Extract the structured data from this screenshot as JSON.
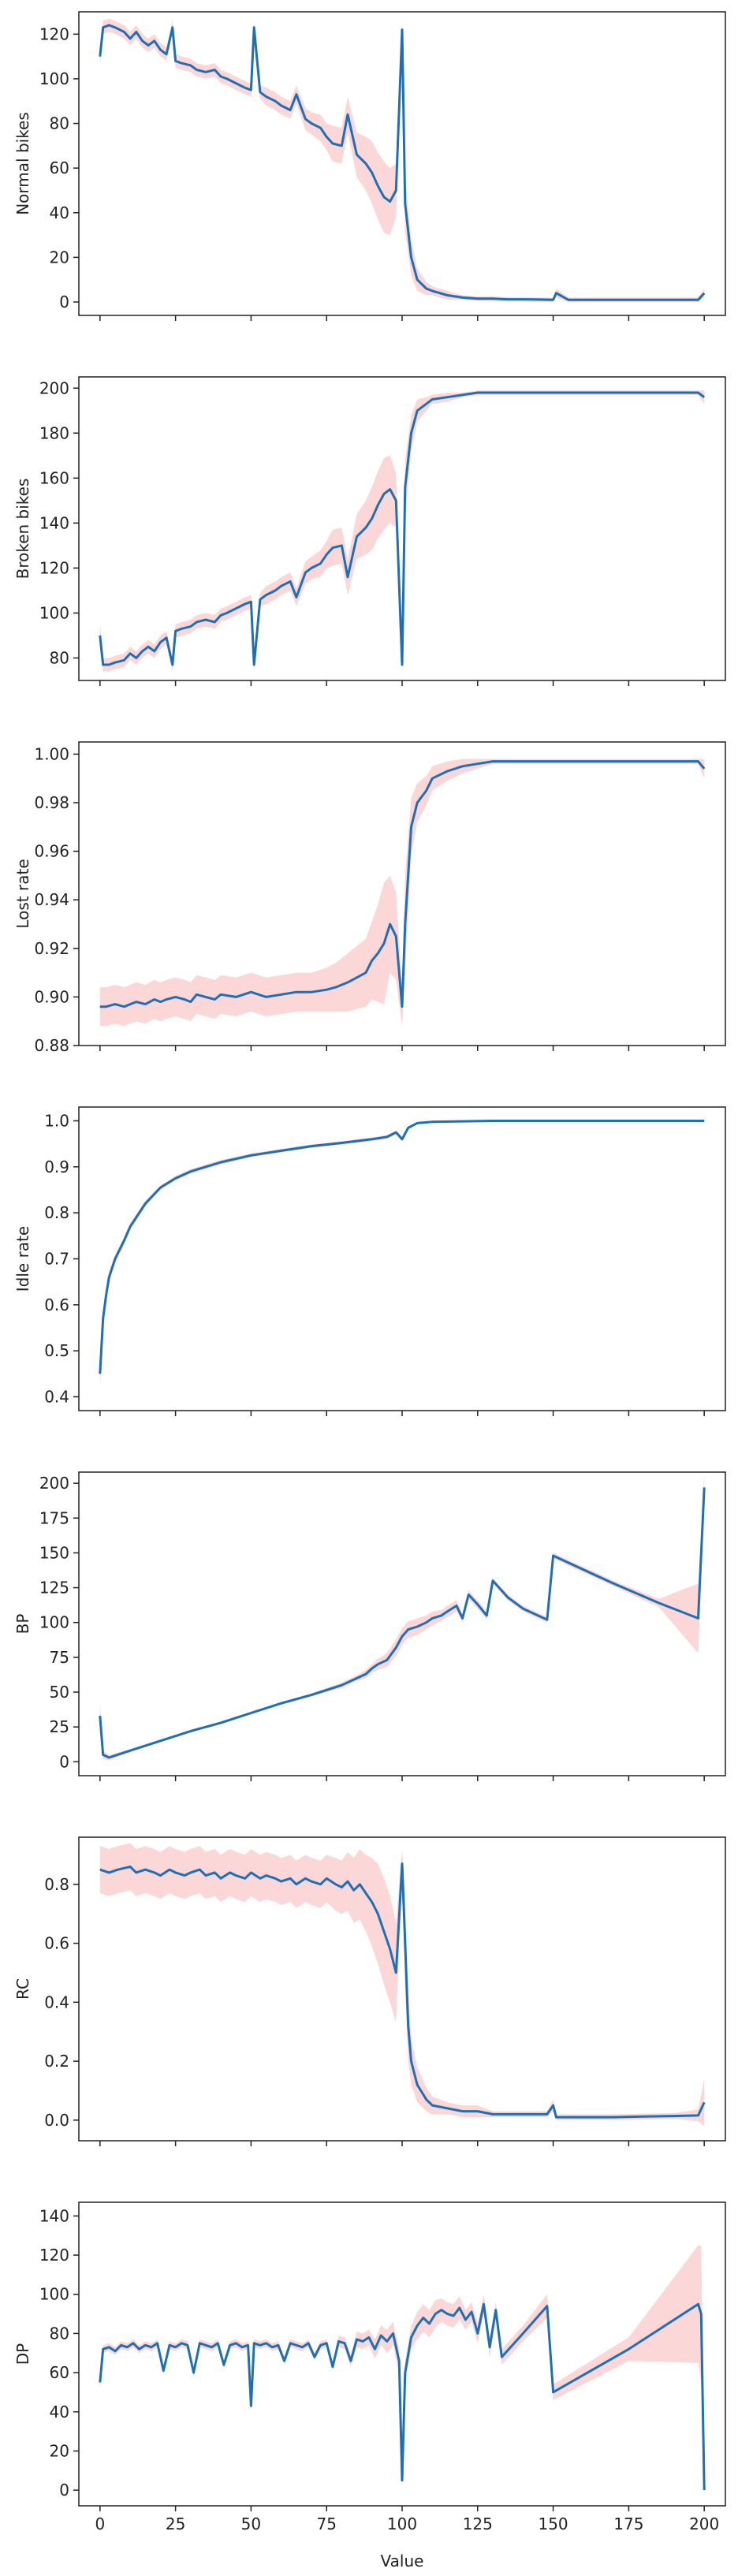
{
  "colors": {
    "line": "#1f6fb4",
    "band": "#f9c9c9",
    "frame": "#222222",
    "background": "#ffffff"
  },
  "shared_x": {
    "label": "Value",
    "ticks": [
      0,
      25,
      50,
      75,
      100,
      125,
      150,
      175,
      200
    ],
    "xlim": [
      -7,
      207
    ]
  },
  "chart_data": [
    {
      "type": "line",
      "ylabel": "Normal bikes",
      "ylim": [
        -6,
        130
      ],
      "yticks": [
        0,
        20,
        40,
        60,
        80,
        100,
        120
      ],
      "yticklabels": [
        "0",
        "20",
        "40",
        "60",
        "80",
        "100",
        "120"
      ],
      "x": [
        0,
        1,
        3,
        5,
        8,
        10,
        12,
        14,
        16,
        18,
        20,
        22,
        24,
        25,
        27,
        30,
        32,
        35,
        38,
        40,
        42,
        45,
        48,
        50,
        51,
        53,
        55,
        58,
        60,
        63,
        65,
        68,
        70,
        73,
        75,
        77,
        80,
        82,
        85,
        88,
        90,
        92,
        94,
        96,
        98,
        100,
        101,
        103,
        105,
        108,
        110,
        115,
        120,
        125,
        130,
        135,
        140,
        145,
        150,
        151,
        155,
        160,
        170,
        180,
        190,
        198,
        200
      ],
      "y": [
        110,
        123,
        124,
        123,
        121,
        118,
        121,
        117,
        115,
        117,
        113,
        111,
        123,
        108,
        107,
        106,
        104,
        103,
        104,
        101,
        100,
        98,
        96,
        95,
        123,
        94,
        92,
        90,
        88,
        86,
        93,
        82,
        80,
        78,
        74,
        71,
        70,
        84,
        66,
        62,
        58,
        52,
        47,
        45,
        50,
        122,
        44,
        20,
        10,
        6,
        5,
        3,
        2,
        1.5,
        1.5,
        1.2,
        1.2,
        1.1,
        1.0,
        4.0,
        1.0,
        1.0,
        1.0,
        1.0,
        1.0,
        1.0,
        4.0
      ],
      "band": [
        4,
        3,
        3,
        3,
        3,
        3,
        3,
        3,
        3,
        3,
        3,
        3,
        3,
        3,
        3,
        3,
        3,
        3,
        3,
        3,
        3,
        3,
        3,
        3,
        3,
        3,
        4,
        4,
        4,
        4,
        4,
        5,
        5,
        6,
        6,
        8,
        8,
        8,
        10,
        12,
        14,
        15,
        16,
        15,
        12,
        4,
        12,
        8,
        5,
        3,
        2,
        2,
        1,
        1,
        1,
        1,
        1,
        1,
        1,
        2,
        1,
        1,
        1,
        1,
        1,
        1,
        2
      ]
    },
    {
      "type": "line",
      "ylabel": "Broken bikes",
      "ylim": [
        70,
        205
      ],
      "yticks": [
        80,
        100,
        120,
        140,
        160,
        180,
        200
      ],
      "yticklabels": [
        "80",
        "100",
        "120",
        "140",
        "160",
        "180",
        "200"
      ],
      "x": [
        0,
        1,
        3,
        5,
        8,
        10,
        12,
        14,
        16,
        18,
        20,
        22,
        24,
        25,
        27,
        30,
        32,
        35,
        38,
        40,
        42,
        45,
        48,
        50,
        51,
        53,
        55,
        58,
        60,
        63,
        65,
        68,
        70,
        73,
        75,
        77,
        80,
        82,
        85,
        88,
        90,
        92,
        94,
        96,
        98,
        100,
        101,
        103,
        105,
        108,
        110,
        115,
        120,
        125,
        130,
        140,
        150,
        160,
        170,
        180,
        190,
        198,
        200
      ],
      "y": [
        90,
        77,
        77,
        78,
        79,
        82,
        80,
        83,
        85,
        83,
        87,
        89,
        77,
        92,
        93,
        94,
        96,
        97,
        96,
        99,
        100,
        102,
        104,
        105,
        77,
        106,
        108,
        110,
        112,
        114,
        107,
        118,
        120,
        122,
        126,
        129,
        130,
        116,
        134,
        138,
        142,
        148,
        153,
        155,
        150,
        77,
        156,
        180,
        190,
        193,
        195,
        196,
        197,
        198,
        198,
        198,
        198,
        198,
        198,
        198,
        198,
        198,
        196
      ],
      "band": [
        6,
        3,
        3,
        3,
        3,
        3,
        3,
        3,
        3,
        3,
        3,
        3,
        3,
        3,
        3,
        3,
        3,
        3,
        3,
        3,
        3,
        3,
        3,
        3,
        3,
        3,
        4,
        4,
        4,
        4,
        4,
        5,
        5,
        6,
        6,
        8,
        8,
        8,
        10,
        12,
        14,
        15,
        16,
        15,
        12,
        4,
        12,
        8,
        5,
        3,
        2,
        2,
        1,
        1,
        1,
        1,
        1,
        1,
        1,
        1,
        1,
        1,
        3
      ]
    },
    {
      "type": "line",
      "ylabel": "Lost rate",
      "ylim": [
        0.88,
        1.005
      ],
      "yticks": [
        0.88,
        0.9,
        0.92,
        0.94,
        0.96,
        0.98,
        1.0
      ],
      "yticklabels": [
        "0.88",
        "0.90",
        "0.92",
        "0.94",
        "0.96",
        "0.98",
        "1.00"
      ],
      "x": [
        0,
        2,
        5,
        8,
        10,
        12,
        15,
        18,
        20,
        22,
        25,
        28,
        30,
        32,
        35,
        38,
        40,
        45,
        50,
        55,
        60,
        65,
        70,
        75,
        78,
        80,
        82,
        85,
        88,
        90,
        92,
        94,
        96,
        98,
        100,
        101,
        103,
        105,
        108,
        110,
        115,
        120,
        125,
        130,
        140,
        150,
        160,
        170,
        180,
        190,
        198,
        200
      ],
      "y": [
        0.896,
        0.896,
        0.897,
        0.896,
        0.897,
        0.898,
        0.897,
        0.899,
        0.898,
        0.899,
        0.9,
        0.899,
        0.898,
        0.901,
        0.9,
        0.899,
        0.901,
        0.9,
        0.902,
        0.9,
        0.901,
        0.902,
        0.902,
        0.903,
        0.904,
        0.905,
        0.906,
        0.908,
        0.91,
        0.915,
        0.918,
        0.922,
        0.93,
        0.925,
        0.896,
        0.93,
        0.97,
        0.98,
        0.985,
        0.99,
        0.993,
        0.995,
        0.996,
        0.997,
        0.997,
        0.997,
        0.997,
        0.997,
        0.997,
        0.997,
        0.997,
        0.994
      ],
      "band": [
        0.008,
        0.008,
        0.008,
        0.008,
        0.008,
        0.008,
        0.008,
        0.008,
        0.008,
        0.008,
        0.008,
        0.008,
        0.008,
        0.008,
        0.008,
        0.008,
        0.008,
        0.008,
        0.008,
        0.008,
        0.008,
        0.008,
        0.008,
        0.009,
        0.01,
        0.011,
        0.012,
        0.013,
        0.014,
        0.016,
        0.02,
        0.025,
        0.02,
        0.018,
        0.008,
        0.02,
        0.012,
        0.008,
        0.006,
        0.005,
        0.004,
        0.003,
        0.002,
        0.001,
        0.001,
        0.001,
        0.001,
        0.001,
        0.001,
        0.001,
        0.001,
        0.004
      ]
    },
    {
      "type": "line",
      "ylabel": "Idle rate",
      "ylim": [
        0.37,
        1.03
      ],
      "yticks": [
        0.4,
        0.5,
        0.6,
        0.7,
        0.8,
        0.9,
        1.0
      ],
      "yticklabels": [
        "0.4",
        "0.5",
        "0.6",
        "0.7",
        "0.8",
        "0.9",
        "1.0"
      ],
      "x": [
        0,
        1,
        2,
        3,
        5,
        8,
        10,
        15,
        20,
        25,
        30,
        35,
        40,
        50,
        60,
        70,
        80,
        90,
        95,
        98,
        100,
        102,
        105,
        110,
        120,
        130,
        150,
        170,
        190,
        200
      ],
      "y": [
        0.45,
        0.57,
        0.62,
        0.66,
        0.7,
        0.74,
        0.77,
        0.82,
        0.855,
        0.875,
        0.89,
        0.9,
        0.91,
        0.925,
        0.935,
        0.945,
        0.952,
        0.96,
        0.965,
        0.975,
        0.96,
        0.985,
        0.995,
        0.998,
        0.999,
        1.0,
        1.0,
        1.0,
        1.0,
        1.0
      ],
      "band": [
        0.03,
        0.02,
        0.015,
        0.012,
        0.01,
        0.008,
        0.008,
        0.006,
        0.005,
        0.005,
        0.005,
        0.005,
        0.005,
        0.004,
        0.004,
        0.004,
        0.004,
        0.004,
        0.004,
        0.004,
        0.004,
        0.003,
        0.002,
        0.001,
        0.001,
        0.0,
        0.0,
        0.0,
        0.0,
        0.0
      ]
    },
    {
      "type": "line",
      "ylabel": "BP",
      "ylim": [
        -10,
        208
      ],
      "yticks": [
        0,
        25,
        50,
        75,
        100,
        125,
        150,
        175,
        200
      ],
      "yticklabels": [
        "0",
        "25",
        "50",
        "75",
        "100",
        "125",
        "150",
        "175",
        "200"
      ],
      "x": [
        0,
        1,
        3,
        10,
        20,
        30,
        40,
        50,
        60,
        70,
        80,
        85,
        88,
        90,
        92,
        95,
        98,
        100,
        102,
        105,
        108,
        110,
        113,
        115,
        118,
        120,
        122,
        125,
        128,
        130,
        135,
        140,
        148,
        150,
        158,
        170,
        185,
        198,
        200
      ],
      "y": [
        33,
        5,
        3,
        8,
        15,
        22,
        28,
        35,
        42,
        48,
        55,
        60,
        63,
        67,
        70,
        73,
        82,
        90,
        95,
        97,
        100,
        103,
        105,
        108,
        112,
        103,
        120,
        113,
        105,
        130,
        118,
        110,
        102,
        148,
        140,
        128,
        114,
        103,
        197
      ],
      "band": [
        10,
        3,
        2,
        1,
        1,
        1,
        1,
        1,
        1,
        1,
        2,
        2,
        3,
        3,
        4,
        5,
        6,
        6,
        6,
        6,
        5,
        5,
        4,
        4,
        4,
        3,
        3,
        3,
        3,
        2,
        2,
        2,
        2,
        2,
        2,
        2,
        3,
        25,
        10
      ]
    },
    {
      "type": "line",
      "ylabel": "RC",
      "ylim": [
        -0.07,
        0.96
      ],
      "yticks": [
        0.0,
        0.2,
        0.4,
        0.6,
        0.8
      ],
      "yticklabels": [
        "0.0",
        "0.2",
        "0.4",
        "0.6",
        "0.8"
      ],
      "x": [
        0,
        3,
        6,
        10,
        12,
        15,
        18,
        20,
        23,
        25,
        28,
        30,
        33,
        35,
        38,
        40,
        43,
        45,
        48,
        50,
        53,
        55,
        58,
        60,
        63,
        65,
        68,
        70,
        73,
        75,
        78,
        80,
        82,
        84,
        86,
        88,
        90,
        92,
        94,
        96,
        98,
        100,
        101,
        102,
        103,
        105,
        108,
        110,
        115,
        120,
        125,
        130,
        140,
        148,
        150,
        151,
        160,
        170,
        180,
        190,
        198,
        200
      ],
      "y": [
        0.85,
        0.84,
        0.85,
        0.86,
        0.84,
        0.85,
        0.84,
        0.83,
        0.85,
        0.84,
        0.83,
        0.84,
        0.85,
        0.83,
        0.84,
        0.82,
        0.84,
        0.83,
        0.82,
        0.84,
        0.82,
        0.83,
        0.82,
        0.81,
        0.82,
        0.8,
        0.82,
        0.81,
        0.8,
        0.82,
        0.8,
        0.79,
        0.81,
        0.78,
        0.8,
        0.77,
        0.74,
        0.7,
        0.64,
        0.58,
        0.5,
        0.87,
        0.6,
        0.32,
        0.2,
        0.12,
        0.07,
        0.05,
        0.04,
        0.03,
        0.03,
        0.02,
        0.02,
        0.02,
        0.05,
        0.01,
        0.01,
        0.01,
        0.012,
        0.014,
        0.016,
        0.06
      ],
      "band": [
        0.08,
        0.08,
        0.08,
        0.08,
        0.08,
        0.08,
        0.08,
        0.08,
        0.08,
        0.08,
        0.08,
        0.08,
        0.08,
        0.08,
        0.08,
        0.08,
        0.08,
        0.08,
        0.08,
        0.08,
        0.08,
        0.08,
        0.08,
        0.08,
        0.08,
        0.08,
        0.08,
        0.08,
        0.08,
        0.08,
        0.09,
        0.09,
        0.1,
        0.11,
        0.12,
        0.13,
        0.15,
        0.17,
        0.18,
        0.18,
        0.17,
        0.05,
        0.15,
        0.12,
        0.08,
        0.06,
        0.04,
        0.03,
        0.02,
        0.02,
        0.02,
        0.01,
        0.01,
        0.01,
        0.02,
        0.01,
        0.01,
        0.01,
        0.01,
        0.01,
        0.02,
        0.08
      ]
    },
    {
      "type": "line",
      "ylabel": "DP",
      "ylim": [
        -8,
        147
      ],
      "yticks": [
        0,
        20,
        40,
        60,
        80,
        100,
        120,
        140
      ],
      "yticklabels": [
        "0",
        "20",
        "40",
        "60",
        "80",
        "100",
        "120",
        "140"
      ],
      "x": [
        0,
        1,
        3,
        5,
        7,
        9,
        11,
        13,
        15,
        17,
        19,
        21,
        23,
        25,
        27,
        29,
        31,
        33,
        35,
        37,
        39,
        41,
        43,
        45,
        47,
        49,
        50,
        51,
        53,
        55,
        57,
        59,
        61,
        63,
        65,
        67,
        69,
        71,
        73,
        75,
        77,
        79,
        81,
        83,
        85,
        87,
        89,
        91,
        93,
        95,
        97,
        99,
        100,
        101,
        103,
        105,
        107,
        109,
        111,
        113,
        115,
        117,
        119,
        121,
        123,
        125,
        127,
        129,
        131,
        133,
        140,
        148,
        150,
        175,
        198,
        199,
        200
      ],
      "y": [
        55,
        72,
        73,
        71,
        74,
        73,
        75,
        72,
        74,
        73,
        75,
        61,
        74,
        73,
        75,
        74,
        60,
        75,
        74,
        73,
        75,
        64,
        74,
        75,
        73,
        74,
        43,
        75,
        74,
        75,
        73,
        74,
        66,
        75,
        74,
        73,
        75,
        68,
        74,
        75,
        63,
        76,
        75,
        66,
        77,
        76,
        78,
        72,
        79,
        76,
        80,
        66,
        5,
        60,
        78,
        84,
        88,
        85,
        90,
        92,
        90,
        89,
        93,
        87,
        91,
        80,
        95,
        73,
        92,
        68,
        80,
        94,
        50,
        72,
        95,
        90,
        0
      ],
      "band": [
        3,
        2,
        2,
        2,
        2,
        2,
        2,
        2,
        2,
        2,
        2,
        2,
        2,
        2,
        2,
        2,
        2,
        2,
        2,
        2,
        2,
        2,
        2,
        2,
        2,
        2,
        2,
        2,
        2,
        2,
        2,
        2,
        2,
        2,
        2,
        2,
        2,
        2,
        2,
        2,
        2,
        3,
        3,
        3,
        4,
        4,
        4,
        5,
        5,
        6,
        6,
        6,
        3,
        6,
        6,
        7,
        7,
        7,
        7,
        6,
        6,
        6,
        6,
        5,
        5,
        5,
        5,
        5,
        4,
        4,
        4,
        6,
        4,
        6,
        30,
        35,
        4
      ]
    }
  ]
}
